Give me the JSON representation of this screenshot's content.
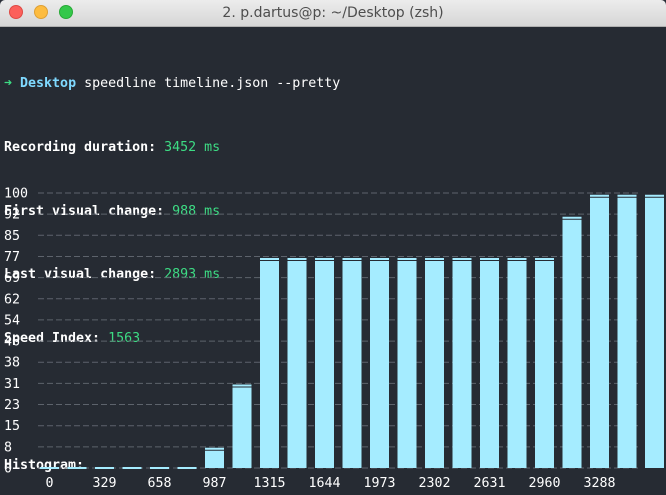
{
  "window": {
    "title": "2. p.dartus@p: ~/Desktop (zsh)"
  },
  "prompt": {
    "arrow": "➜",
    "dir": "Desktop",
    "command": "speedline timeline.json --pretty"
  },
  "metrics": [
    {
      "label": "Recording duration:",
      "value": "3452 ms"
    },
    {
      "label": "First visual change:",
      "value": "988 ms"
    },
    {
      "label": "Last visual change:",
      "value": "2893 ms"
    },
    {
      "label": "Speed Index:",
      "value": "1563"
    }
  ],
  "histogram_title": "Histogram:",
  "colors": {
    "bar": "#a5ecff",
    "value_text": "#3ddc84",
    "dir": "#7fd9ff",
    "background": "#262b33"
  },
  "chart_data": {
    "type": "bar",
    "ylim": [
      0,
      100
    ],
    "yticks": [
      "100",
      "92",
      "85",
      "77",
      "69",
      "62",
      "54",
      "46",
      "38",
      "31",
      "23",
      "15",
      "8",
      "0"
    ],
    "xticks": [
      "0",
      "329",
      "658",
      "987",
      "1315",
      "1644",
      "1973",
      "2302",
      "2631",
      "2960",
      "3288"
    ],
    "values": [
      0,
      0,
      0,
      0,
      0,
      0,
      7,
      30,
      76,
      76,
      76,
      76,
      76,
      76,
      76,
      76,
      76,
      76,
      76,
      91,
      99,
      99,
      99
    ]
  }
}
